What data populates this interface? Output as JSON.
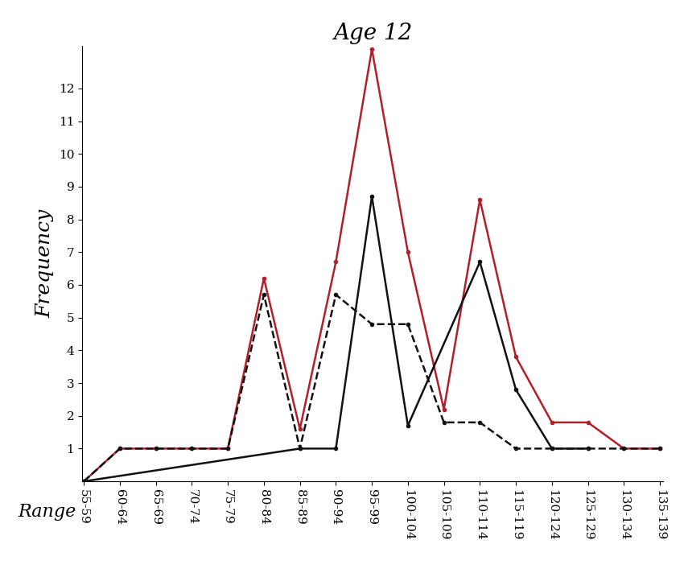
{
  "chart_data": {
    "type": "line",
    "title": "Age 12",
    "x_label": "Range",
    "y_label": "Frequency",
    "categories": [
      "55-59",
      "60-64",
      "65-69",
      "70-74",
      "75-79",
      "80-84",
      "85-89",
      "90-94",
      "95-99",
      "100-104",
      "105-109",
      "110-114",
      "115-119",
      "120-124",
      "125-129",
      "130-134",
      "135-139"
    ],
    "series": [
      {
        "color": "#b0202a",
        "line_style": "solid",
        "marker": "dot",
        "values": [
          0,
          1,
          1,
          1,
          1,
          6.2,
          1.6,
          6.7,
          13.2,
          7,
          2.2,
          8.6,
          3.8,
          1.8,
          1.8,
          1,
          1
        ]
      },
      {
        "color": "#111111",
        "line_style": "solid",
        "marker": "dot",
        "values": [
          0,
          null,
          null,
          null,
          null,
          null,
          1,
          1,
          8.7,
          1.7,
          null,
          6.7,
          2.8,
          1,
          1,
          null,
          null
        ]
      },
      {
        "color": "#111111",
        "line_style": "dashed",
        "marker": "dot",
        "values": [
          0,
          1,
          1,
          1,
          1,
          5.7,
          1,
          5.7,
          4.8,
          4.8,
          1.8,
          1.8,
          1,
          1,
          1,
          1,
          1
        ]
      }
    ],
    "ylim": [
      0,
      13.3
    ],
    "yticks": [
      1,
      2,
      3,
      4,
      5,
      6,
      7,
      8,
      9,
      10,
      11,
      12
    ]
  }
}
